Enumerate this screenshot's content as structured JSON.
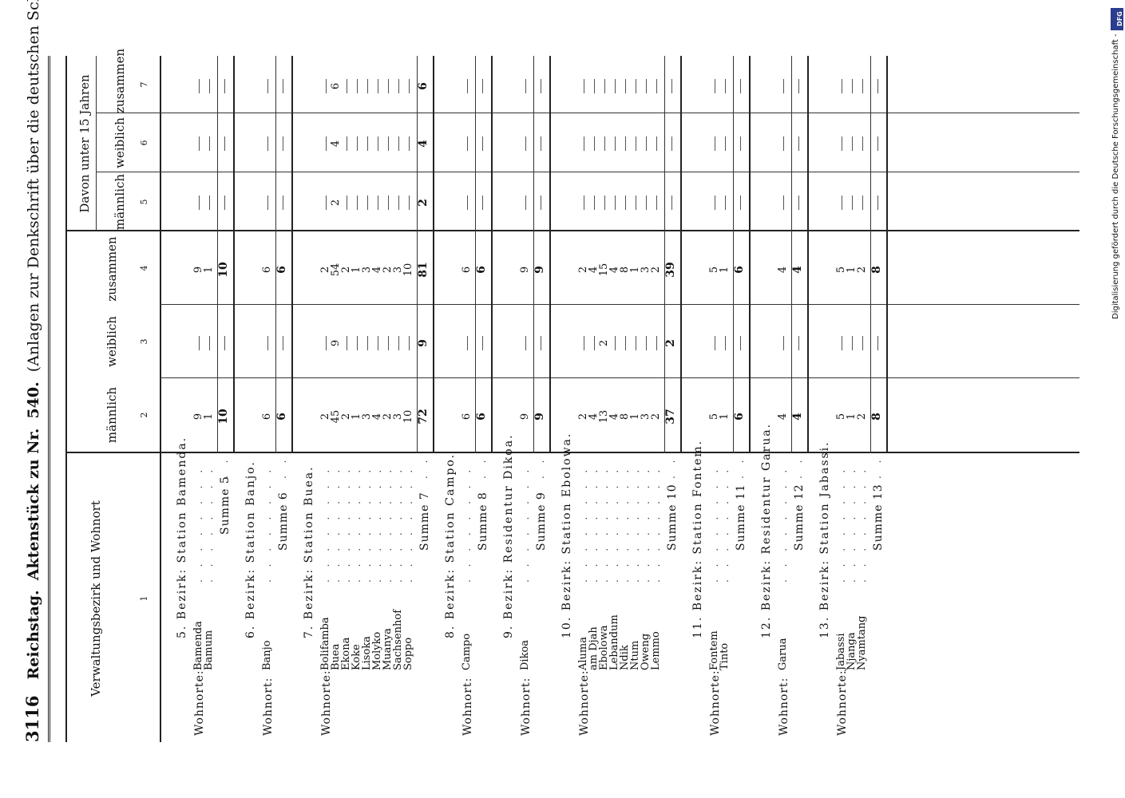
{
  "header": {
    "page_number": "3116",
    "running_title": "Reichstag.",
    "doc_prefix": "Aktenstück zu Nr.",
    "doc_number": "540.",
    "doc_suffix": "(Anlagen zur Denkschrift über die deutschen Schutzgebiete.)"
  },
  "columns": {
    "c1": "Verwaltungsbezirk und Wohnort",
    "male": "männlich",
    "female": "weiblich",
    "total": "zusammen",
    "under15_group": "Davon unter 15 Jahren",
    "numbers": [
      "1",
      "2",
      "3",
      "4",
      "5",
      "6",
      "7"
    ]
  },
  "sections": [
    {
      "title": "5. Bezirk: Station Bamenda.",
      "prefix": "Wohnorte:",
      "rows": [
        {
          "place": "Bamenda",
          "m": "9",
          "w": "—",
          "z": "9",
          "um": "—",
          "uw": "—",
          "uz": "—"
        },
        {
          "place": "Bamum",
          "m": "1",
          "w": "—",
          "z": "1",
          "um": "—",
          "uw": "—",
          "uz": "—"
        }
      ],
      "sum": {
        "label": "Summe 5",
        "m": "10",
        "w": "—",
        "z": "10",
        "um": "—",
        "uw": "—",
        "uz": "—"
      }
    },
    {
      "title": "6. Bezirk: Station Banjo.",
      "prefix": "Wohnort:",
      "rows": [
        {
          "place": "Banjo",
          "m": "6",
          "w": "—",
          "z": "6",
          "um": "—",
          "uw": "—",
          "uz": "—"
        }
      ],
      "sum": {
        "label": "Summe 6",
        "m": "6",
        "w": "—",
        "z": "6",
        "um": "—",
        "uw": "—",
        "uz": "—"
      }
    },
    {
      "title": "7. Bezirk: Station Buea.",
      "prefix": "Wohnorte:",
      "rows": [
        {
          "place": "Bolifamba",
          "m": "2",
          "w": "—",
          "z": "2",
          "um": "—",
          "uw": "—",
          "uz": "—"
        },
        {
          "place": "Buea",
          "m": "45",
          "w": "9",
          "z": "54",
          "um": "2",
          "uw": "4",
          "uz": "6"
        },
        {
          "place": "Ekona",
          "m": "2",
          "w": "—",
          "z": "2",
          "um": "—",
          "uw": "—",
          "uz": "—"
        },
        {
          "place": "Koke",
          "m": "1",
          "w": "—",
          "z": "1",
          "um": "—",
          "uw": "—",
          "uz": "—"
        },
        {
          "place": "Lisoka",
          "m": "3",
          "w": "—",
          "z": "3",
          "um": "—",
          "uw": "—",
          "uz": "—"
        },
        {
          "place": "Molyko",
          "m": "4",
          "w": "—",
          "z": "4",
          "um": "—",
          "uw": "—",
          "uz": "—"
        },
        {
          "place": "Muanya",
          "m": "2",
          "w": "—",
          "z": "2",
          "um": "—",
          "uw": "—",
          "uz": "—"
        },
        {
          "place": "Sachsenhof",
          "m": "3",
          "w": "—",
          "z": "3",
          "um": "—",
          "uw": "—",
          "uz": "—"
        },
        {
          "place": "Soppo",
          "m": "10",
          "w": "—",
          "z": "10",
          "um": "—",
          "uw": "—",
          "uz": "—"
        }
      ],
      "sum": {
        "label": "Summe 7",
        "m": "72",
        "w": "9",
        "z": "81",
        "um": "2",
        "uw": "4",
        "uz": "6"
      }
    },
    {
      "title": "8. Bezirk: Station Campo.",
      "prefix": "Wohnort:",
      "rows": [
        {
          "place": "Campo",
          "m": "6",
          "w": "—",
          "z": "6",
          "um": "—",
          "uw": "—",
          "uz": "—"
        }
      ],
      "sum": {
        "label": "Summe 8",
        "m": "6",
        "w": "—",
        "z": "6",
        "um": "—",
        "uw": "—",
        "uz": "—"
      }
    },
    {
      "title": "9. Bezirk: Residentur Dikoa.",
      "prefix": "Wohnort:",
      "rows": [
        {
          "place": "Dikoa",
          "m": "9",
          "w": "—",
          "z": "9",
          "um": "—",
          "uw": "—",
          "uz": "—"
        }
      ],
      "sum": {
        "label": "Summe 9",
        "m": "9",
        "w": "—",
        "z": "9",
        "um": "—",
        "uw": "—",
        "uz": "—"
      }
    },
    {
      "title": "10. Bezirk: Station Ebolowa.",
      "prefix": "Wohnorte:",
      "rows": [
        {
          "place": "Aluma",
          "m": "2",
          "w": "—",
          "z": "2",
          "um": "—",
          "uw": "—",
          "uz": "—"
        },
        {
          "place": "am Djah",
          "m": "4",
          "w": "—",
          "z": "4",
          "um": "—",
          "uw": "—",
          "uz": "—"
        },
        {
          "place": "Ebolowa",
          "m": "13",
          "w": "2",
          "z": "15",
          "um": "—",
          "uw": "—",
          "uz": "—"
        },
        {
          "place": "Lebandum",
          "m": "4",
          "w": "—",
          "z": "4",
          "um": "—",
          "uw": "—",
          "uz": "—"
        },
        {
          "place": "Ndik",
          "m": "8",
          "w": "—",
          "z": "8",
          "um": "—",
          "uw": "—",
          "uz": "—"
        },
        {
          "place": "Ntum",
          "m": "1",
          "w": "—",
          "z": "1",
          "um": "—",
          "uw": "—",
          "uz": "—"
        },
        {
          "place": "Oweng",
          "m": "3",
          "w": "—",
          "z": "3",
          "um": "—",
          "uw": "—",
          "uz": "—"
        },
        {
          "place": "Lemmo",
          "m": "2",
          "w": "—",
          "z": "2",
          "um": "—",
          "uw": "—",
          "uz": "—"
        }
      ],
      "sum": {
        "label": "Summe 10",
        "m": "37",
        "w": "2",
        "z": "39",
        "um": "—",
        "uw": "—",
        "uz": "—"
      }
    },
    {
      "title": "11. Bezirk: Station Fontem.",
      "prefix": "Wohnorte:",
      "rows": [
        {
          "place": "Fontem",
          "m": "5",
          "w": "—",
          "z": "5",
          "um": "—",
          "uw": "—",
          "uz": "—"
        },
        {
          "place": "Tinto",
          "m": "1",
          "w": "—",
          "z": "1",
          "um": "—",
          "uw": "—",
          "uz": "—"
        }
      ],
      "sum": {
        "label": "Summe 11",
        "m": "6",
        "w": "—",
        "z": "6",
        "um": "—",
        "uw": "—",
        "uz": "—"
      }
    },
    {
      "title": "12. Bezirk: Residentur Garua.",
      "prefix": "Wohnort:",
      "rows": [
        {
          "place": "Garua",
          "m": "4",
          "w": "—",
          "z": "4",
          "um": "—",
          "uw": "—",
          "uz": "—"
        }
      ],
      "sum": {
        "label": "Summe 12",
        "m": "4",
        "w": "—",
        "z": "4",
        "um": "—",
        "uw": "—",
        "uz": "—"
      }
    },
    {
      "title": "13. Bezirk: Station Jabassi.",
      "prefix": "Wohnorte:",
      "rows": [
        {
          "place": "Jabassi",
          "m": "5",
          "w": "—",
          "z": "5",
          "um": "—",
          "uw": "—",
          "uz": "—"
        },
        {
          "place": "Njanga",
          "m": "1",
          "w": "—",
          "z": "1",
          "um": "—",
          "uw": "—",
          "uz": "—"
        },
        {
          "place": "Nyamtang",
          "m": "2",
          "w": "—",
          "z": "2",
          "um": "—",
          "uw": "—",
          "uz": "—"
        }
      ],
      "sum": {
        "label": "Summe 13",
        "m": "8",
        "w": "—",
        "z": "8",
        "um": "—",
        "uw": "—",
        "uz": "—"
      }
    }
  ],
  "side_note": {
    "text": "Digitalisierung gefördert durch die Deutsche Forschungsgemeinschaft -",
    "logo": "DFG"
  }
}
